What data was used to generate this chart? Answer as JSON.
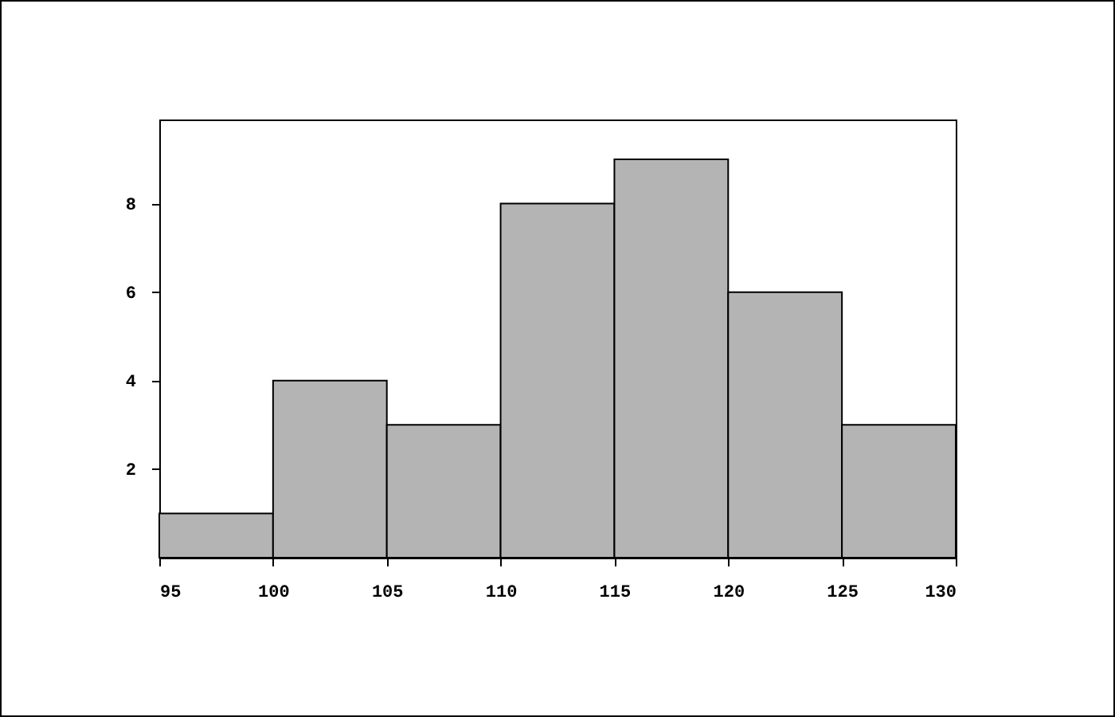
{
  "chart_data": {
    "type": "histogram",
    "bins": [
      95,
      100,
      105,
      110,
      115,
      120,
      125,
      130
    ],
    "values": [
      1,
      4,
      3,
      8,
      9,
      6,
      3
    ],
    "color": "#b4b4b4",
    "xlim": [
      95,
      130
    ],
    "xticks": [
      95,
      100,
      105,
      110,
      115,
      120,
      125,
      130
    ],
    "ylim": [
      0,
      9.9
    ],
    "yticks": [
      2,
      4,
      6,
      8
    ]
  }
}
